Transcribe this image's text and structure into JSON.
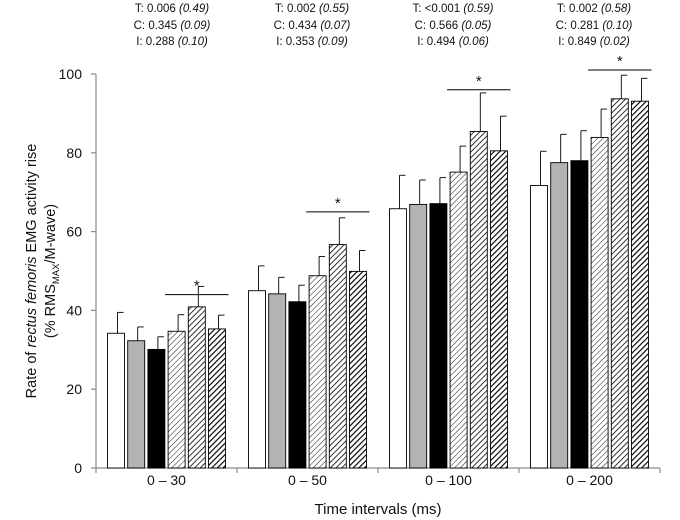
{
  "chart_data": {
    "type": "bar",
    "xlabel": "Time intervals (ms)",
    "ylabel_parts": [
      "Rate of ",
      "rectus femoris",
      " EMG activity rise"
    ],
    "ylabel2_parts": [
      "(% RMS",
      "MAX",
      "/M-wave)"
    ],
    "ylim": [
      0,
      100
    ],
    "yticks": [
      "0",
      "20",
      "40",
      "60",
      "80",
      "100"
    ],
    "categories": [
      "0 – 30",
      "0 – 50",
      "0 – 100",
      "0 – 200"
    ],
    "series": [
      {
        "fill": "white",
        "values": [
          34.2,
          45.0,
          65.8,
          71.7
        ],
        "errors": [
          5.3,
          6.3,
          8.5,
          8.7
        ]
      },
      {
        "fill": "gray",
        "values": [
          32.3,
          44.2,
          66.9,
          77.5
        ],
        "errors": [
          3.5,
          4.2,
          6.2,
          7.2
        ]
      },
      {
        "fill": "black",
        "values": [
          30.1,
          42.2,
          67.1,
          78.0
        ],
        "errors": [
          3.2,
          4.2,
          6.6,
          7.6
        ]
      },
      {
        "fill": "hatch1",
        "values": [
          34.7,
          48.8,
          75.1,
          83.9
        ],
        "errors": [
          4.2,
          4.9,
          6.6,
          7.2
        ]
      },
      {
        "fill": "hatch2",
        "values": [
          40.9,
          56.7,
          85.4,
          93.7
        ],
        "errors": [
          5.2,
          6.8,
          9.8,
          6.0
        ]
      },
      {
        "fill": "hatch3",
        "values": [
          35.3,
          49.9,
          80.5,
          93.1
        ],
        "errors": [
          3.5,
          5.3,
          8.8,
          5.8
        ]
      }
    ],
    "significance": [
      {
        "group": 0,
        "level": 44.0,
        "label": "*"
      },
      {
        "group": 1,
        "level": 65.0,
        "label": "*"
      },
      {
        "group": 2,
        "level": 96.0,
        "label": "*"
      },
      {
        "group": 3,
        "level": 101.0,
        "label": "*"
      }
    ],
    "stats": [
      {
        "lines": [
          {
            "label": "T: ",
            "p": "0.006",
            "es": "(0.49)"
          },
          {
            "label": "C: ",
            "p": "0.345",
            "es": "(0.09)"
          },
          {
            "label": "I: ",
            "p": "0.288",
            "es": "(0.10)"
          }
        ]
      },
      {
        "lines": [
          {
            "label": "T: ",
            "p": "0.002",
            "es": "(0.55)"
          },
          {
            "label": "C: ",
            "p": "0.434",
            "es": "(0.07)"
          },
          {
            "label": "I: ",
            "p": "0.353",
            "es": "(0.09)"
          }
        ]
      },
      {
        "lines": [
          {
            "label": "T: ",
            "p": "<0.001",
            "es": "(0.59)"
          },
          {
            "label": "C: ",
            "p": "0.566",
            "es": "(0.05)"
          },
          {
            "label": "I: ",
            "p": "0.494",
            "es": "(0.06)"
          }
        ]
      },
      {
        "lines": [
          {
            "label": "T: ",
            "p": "0.002",
            "es": "(0.58)"
          },
          {
            "label": "C: ",
            "p": "0.281",
            "es": "(0.10)"
          },
          {
            "label": "I: ",
            "p": "0.849",
            "es": "(0.02)"
          }
        ]
      }
    ]
  },
  "colors": {
    "axis": "#8c8c8c",
    "bar_stroke": "#000000",
    "gray_fill": "#b3b3b3",
    "black_fill": "#000000",
    "text": "#111111"
  }
}
